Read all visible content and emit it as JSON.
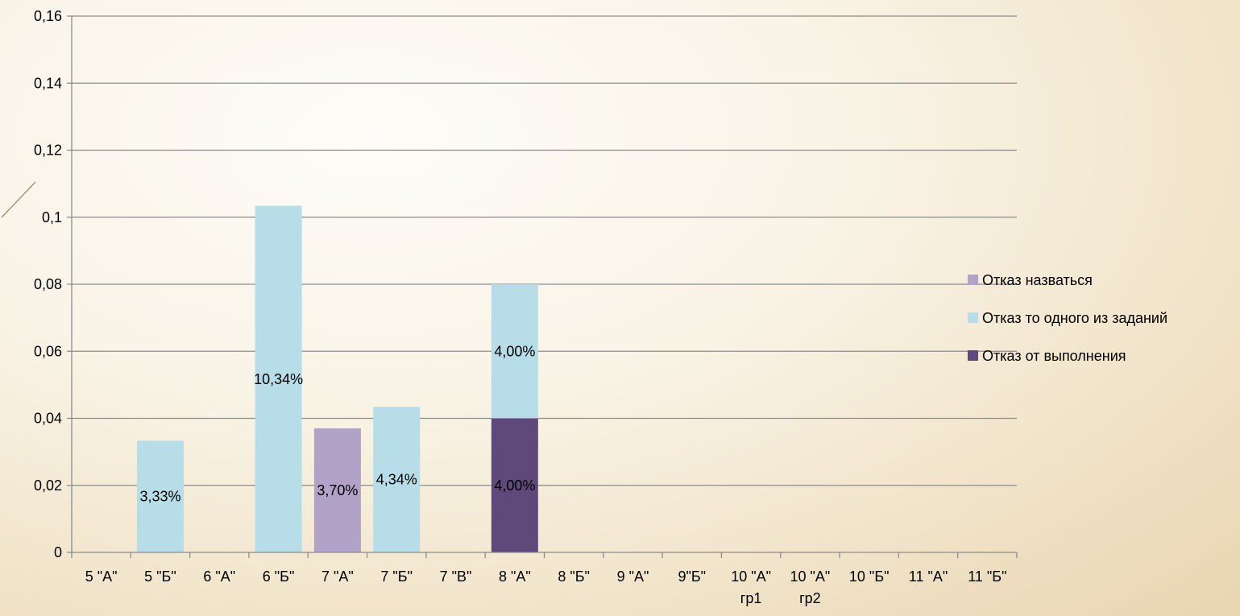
{
  "chart_data": {
    "type": "bar",
    "stacked": true,
    "categories": [
      [
        "5 \"А\""
      ],
      [
        "5 \"Б\""
      ],
      [
        "6 \"А\""
      ],
      [
        "6 \"Б\""
      ],
      [
        "7 \"А\""
      ],
      [
        "7 \"Б\""
      ],
      [
        "7 \"В\""
      ],
      [
        "8 \"А\""
      ],
      [
        "8 \"Б\""
      ],
      [
        "9 \"А\""
      ],
      [
        "9\"Б\""
      ],
      [
        "10 \"А\"",
        "гр1"
      ],
      [
        "10 \"А\"",
        "гр2"
      ],
      [
        "10 \"Б\""
      ],
      [
        "11 \"А\""
      ],
      [
        "11 \"Б\""
      ]
    ],
    "series": [
      {
        "name": "Отказ от выполнения",
        "color": "#5f497a",
        "values": [
          0,
          0,
          0,
          0,
          0,
          0,
          0,
          0.04,
          0,
          0,
          0,
          0,
          0,
          0,
          0,
          0
        ],
        "labels": [
          "",
          "",
          "",
          "",
          "",
          "",
          "",
          "4,00%",
          "",
          "",
          "",
          "",
          "",
          "",
          "",
          ""
        ]
      },
      {
        "name": "Отказ то одного из заданий",
        "color": "#b7dde8",
        "values": [
          0,
          0.0333,
          0,
          0.1034,
          0,
          0.0434,
          0,
          0.04,
          0,
          0,
          0,
          0,
          0,
          0,
          0,
          0
        ],
        "labels": [
          "",
          "3,33%",
          "",
          "10,34%",
          "",
          "4,34%",
          "",
          "4,00%",
          "",
          "",
          "",
          "",
          "",
          "",
          "",
          ""
        ]
      },
      {
        "name": "Отказ назваться",
        "color": "#b2a2c7",
        "values": [
          0,
          0,
          0,
          0,
          0.037,
          0,
          0,
          0,
          0,
          0,
          0,
          0,
          0,
          0,
          0,
          0
        ],
        "labels": [
          "",
          "",
          "",
          "",
          "3,70%",
          "",
          "",
          "",
          "",
          "",
          "",
          "",
          "",
          "",
          "",
          ""
        ]
      }
    ],
    "y_ticks": [
      "0",
      "0,02",
      "0,04",
      "0,06",
      "0,08",
      "0,1",
      "0,12",
      "0,14",
      "0,16"
    ],
    "ylim": [
      0,
      0.16
    ],
    "grid": true,
    "legend_position": "right",
    "legend_order": [
      "Отказ назваться",
      "Отказ то одного из заданий",
      "Отказ от выполнения"
    ]
  }
}
